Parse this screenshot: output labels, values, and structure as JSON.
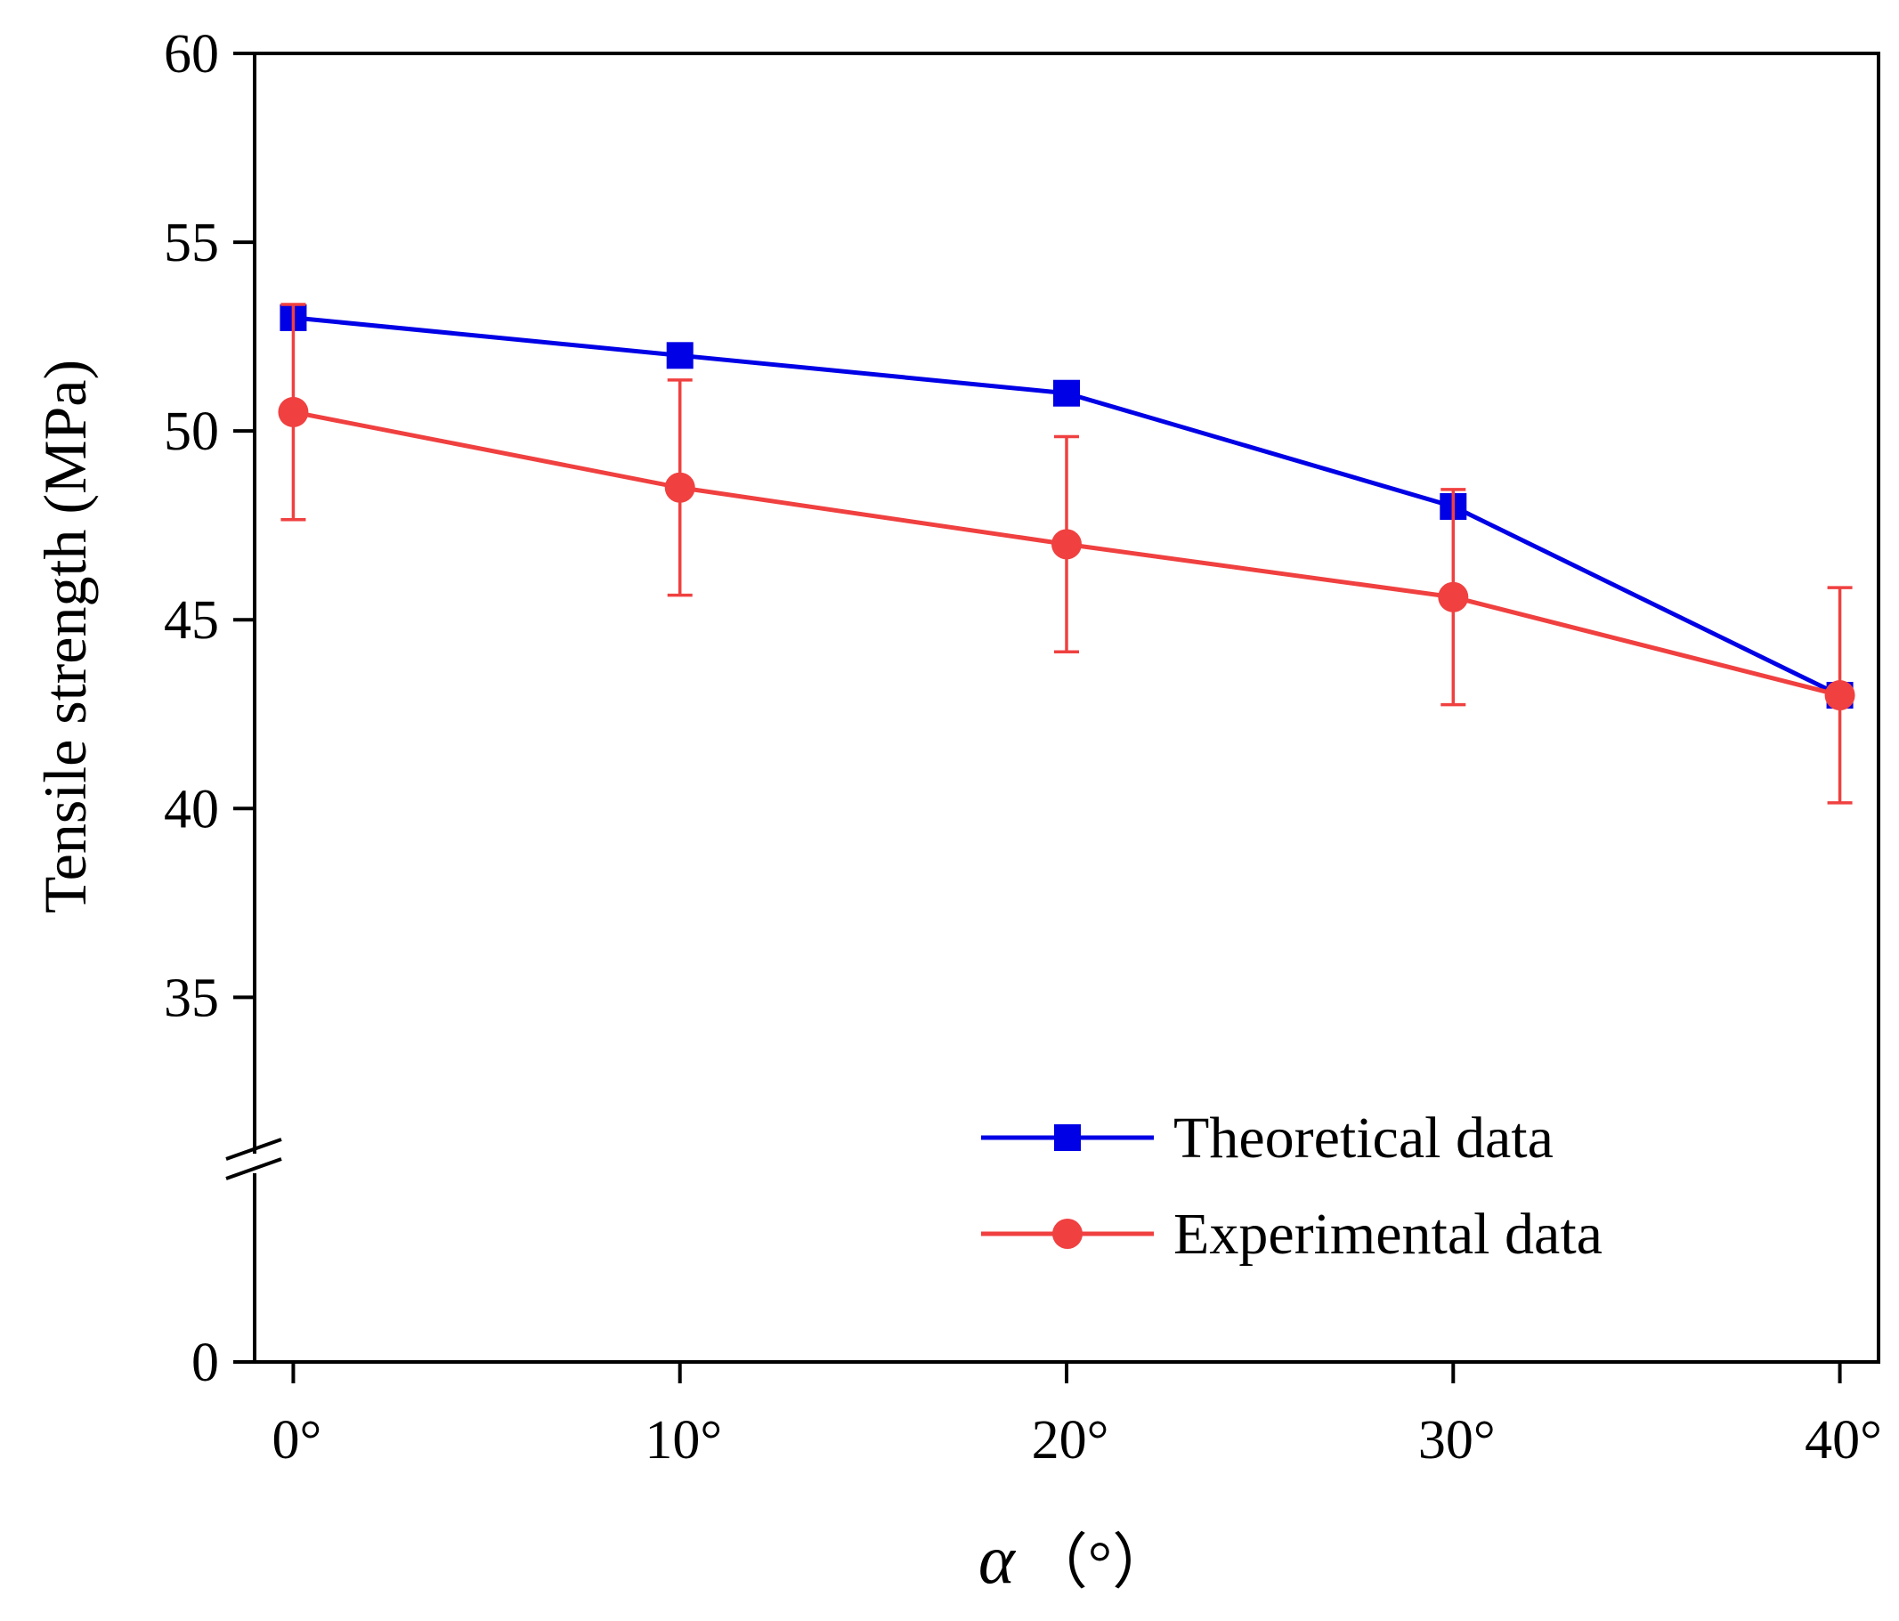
{
  "chart_data": {
    "type": "line",
    "title": "",
    "xlabel": "α（°）",
    "xlabel_symbol": "α",
    "xlabel_unit": "（°）",
    "ylabel": "Tensile strength (MPa)",
    "x_categories": [
      "0°",
      "10°",
      "20°",
      "30°",
      "40°"
    ],
    "x": [
      0,
      10,
      20,
      30,
      40
    ],
    "xlim": [
      -1,
      41
    ],
    "y_ticks": [
      0,
      35,
      40,
      45,
      50,
      55,
      60
    ],
    "y_tick_labels": [
      "0",
      "35",
      "40",
      "45",
      "50",
      "55",
      "60"
    ],
    "y_axis_break": {
      "lower_segment": [
        0,
        0
      ],
      "upper_segment": [
        31,
        60
      ]
    },
    "series": [
      {
        "name": "Theoretical data",
        "color": "#0000e6",
        "marker": "square",
        "values": [
          53.0,
          52.0,
          51.0,
          48.0,
          43.0
        ]
      },
      {
        "name": "Experimental data",
        "color": "#f04040",
        "marker": "circle",
        "values": [
          50.5,
          48.5,
          47.0,
          45.6,
          43.0
        ],
        "error": [
          2.85,
          2.85,
          2.85,
          2.85,
          2.85
        ]
      }
    ],
    "legend_position": "lower-right",
    "grid": false
  }
}
